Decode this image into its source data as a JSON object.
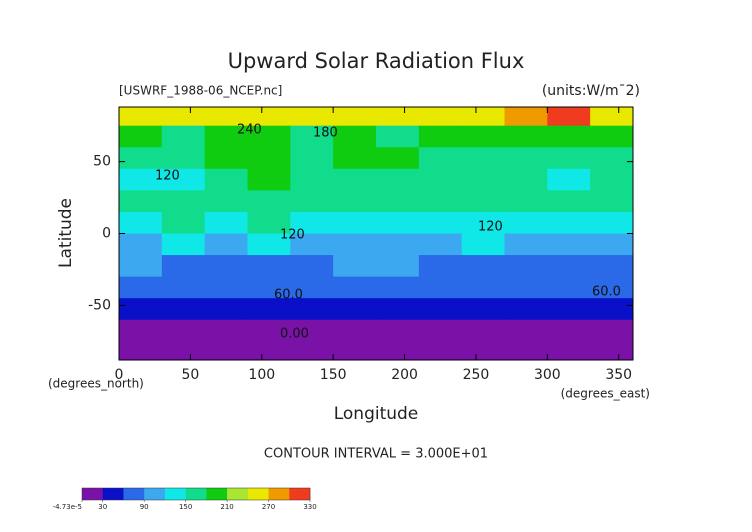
{
  "chart_data": {
    "type": "heatmap",
    "title": "Upward Solar Radiation Flux",
    "source_label": "[USWRF_1988-06_NCEP.nc]",
    "units_label": "(units:W/m¯2)",
    "x_label": "Longitude",
    "y_label": "Latitude",
    "x_unit_label": "(degrees_east)",
    "y_unit_label": "(degrees_north)",
    "contour_interval": "CONTOUR INTERVAL = 3.000E+01",
    "annotations": [
      "240",
      "180",
      "120",
      "120",
      "120",
      "60.0",
      "60.0",
      "0.00"
    ],
    "x": [
      15,
      45,
      75,
      105,
      135,
      165,
      195,
      225,
      255,
      285,
      315,
      345
    ],
    "y": [
      82.5,
      67.5,
      52.5,
      37.5,
      22.5,
      7.5,
      -7.5,
      -22.5,
      -37.5,
      -52.5,
      -67.5,
      -82.5
    ],
    "z": [
      [
        250,
        250,
        255,
        250,
        250,
        250,
        250,
        255,
        250,
        290,
        300,
        260
      ],
      [
        180,
        170,
        185,
        190,
        165,
        190,
        175,
        180,
        200,
        185,
        190,
        200
      ],
      [
        170,
        150,
        180,
        200,
        160,
        190,
        180,
        170,
        160,
        175,
        150,
        170
      ],
      [
        140,
        125,
        170,
        180,
        160,
        170,
        170,
        175,
        150,
        155,
        140,
        160
      ],
      [
        150,
        160,
        165,
        170,
        170,
        160,
        160,
        170,
        160,
        160,
        150,
        160
      ],
      [
        140,
        150,
        140,
        150,
        140,
        125,
        130,
        140,
        130,
        140,
        130,
        140
      ],
      [
        110,
        120,
        100,
        120,
        110,
        110,
        100,
        110,
        120,
        100,
        110,
        110
      ],
      [
        90,
        80,
        80,
        70,
        80,
        90,
        90,
        80,
        80,
        70,
        80,
        80
      ],
      [
        70,
        70,
        70,
        70,
        70,
        70,
        70,
        70,
        70,
        70,
        70,
        70
      ],
      [
        45,
        45,
        45,
        45,
        45,
        45,
        45,
        45,
        45,
        45,
        45,
        45
      ],
      [
        15,
        15,
        15,
        15,
        15,
        15,
        15,
        15,
        15,
        15,
        15,
        15
      ],
      [
        5,
        5,
        5,
        5,
        5,
        5,
        5,
        5,
        5,
        5,
        5,
        5
      ]
    ],
    "xlim": [
      0,
      360
    ],
    "ylim": [
      -88,
      88
    ],
    "xticks": [
      0,
      50,
      100,
      150,
      200,
      250,
      300,
      350
    ],
    "yticks": [
      -50,
      0,
      50
    ],
    "levels": [
      0,
      30,
      60,
      90,
      120,
      150,
      180,
      210,
      240,
      270,
      300,
      330
    ],
    "colors": [
      "#7a12a8",
      "#0a10c8",
      "#2a6ae8",
      "#3ca8f0",
      "#10e8e8",
      "#10dc8c",
      "#10cc10",
      "#a8e632",
      "#e8e800",
      "#f09a00",
      "#f03c1e"
    ],
    "colorbar_ticks": [
      {
        "value": -4.73e-05,
        "label": "-4.73e-5"
      },
      30,
      90,
      150,
      210,
      270,
      330
    ]
  }
}
